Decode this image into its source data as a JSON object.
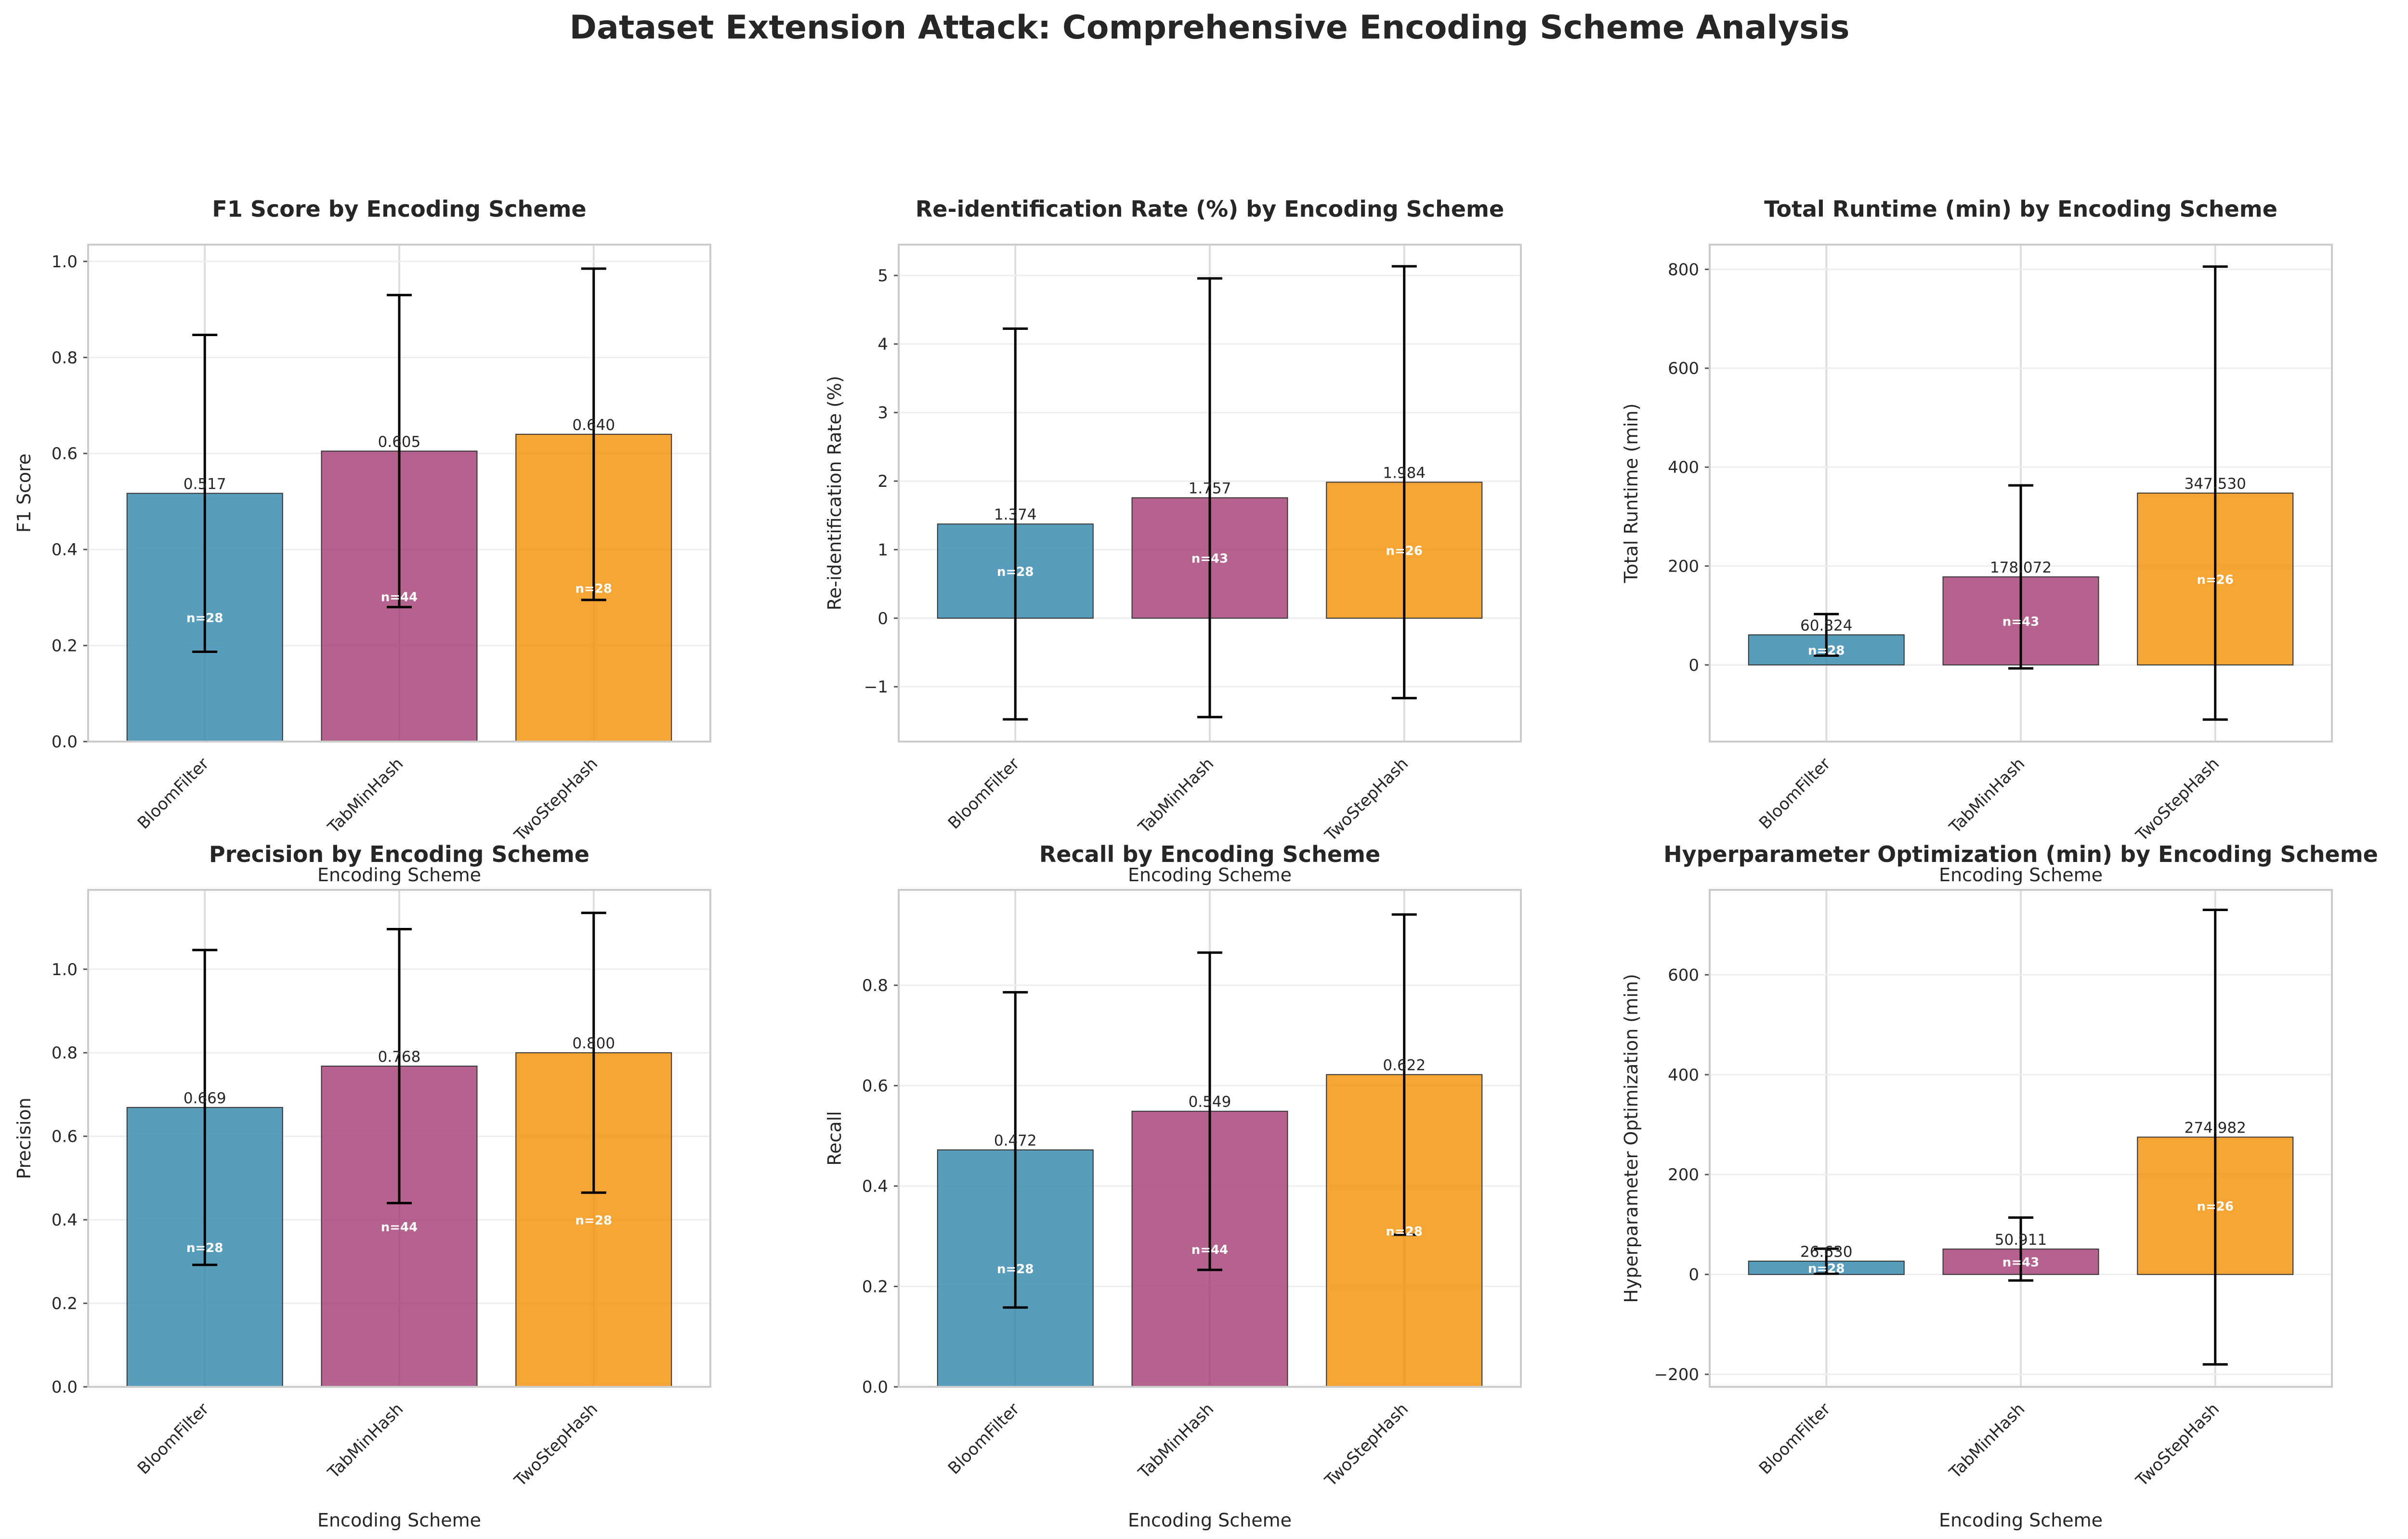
{
  "suptitle": "Dataset Extension Attack: Comprehensive Encoding Scheme Analysis",
  "colors": {
    "BloomFilter": "#2E86AB",
    "TabMinHash": "#A23B72",
    "TwoStepHash": "#F18F01"
  },
  "chart_data": [
    {
      "type": "bar",
      "title": "F1 Score by Encoding Scheme",
      "xlabel": "Encoding Scheme",
      "ylabel": "F1 Score",
      "categories": [
        "BloomFilter",
        "TabMinHash",
        "TwoStepHash"
      ],
      "values": [
        0.517,
        0.605,
        0.64
      ],
      "value_labels": [
        "0.517",
        "0.605",
        "0.640"
      ],
      "errors": [
        0.33,
        0.325,
        0.345
      ],
      "counts": [
        "n=28",
        "n=44",
        "n=28"
      ],
      "ylim": [
        0,
        1.035
      ],
      "yticks": [
        0.0,
        0.2,
        0.4,
        0.6,
        0.8,
        1.0
      ],
      "ytick_labels": [
        "0.0",
        "0.2",
        "0.4",
        "0.6",
        "0.8",
        "1.0"
      ],
      "grid": true
    },
    {
      "type": "bar",
      "title": "Re-identification Rate (%) by Encoding Scheme",
      "xlabel": "Encoding Scheme",
      "ylabel": "Re-identification Rate (%)",
      "categories": [
        "BloomFilter",
        "TabMinHash",
        "TwoStepHash"
      ],
      "values": [
        1.374,
        1.757,
        1.984
      ],
      "value_labels": [
        "1.374",
        "1.757",
        "1.984"
      ],
      "errors": [
        2.85,
        3.2,
        3.15
      ],
      "counts": [
        "n=28",
        "n=43",
        "n=26"
      ],
      "ylim": [
        -1.8,
        5.45
      ],
      "yticks": [
        -1,
        0,
        1,
        2,
        3,
        4,
        5
      ],
      "ytick_labels": [
        "−1",
        "0",
        "1",
        "2",
        "3",
        "4",
        "5"
      ],
      "grid": true
    },
    {
      "type": "bar",
      "title": "Total Runtime (min) by Encoding Scheme",
      "xlabel": "Encoding Scheme",
      "ylabel": "Total Runtime (min)",
      "categories": [
        "BloomFilter",
        "TabMinHash",
        "TwoStepHash"
      ],
      "values": [
        60.824,
        178.072,
        347.53
      ],
      "value_labels": [
        "60.824",
        "178.072",
        "347.530"
      ],
      "errors": [
        42,
        185,
        458
      ],
      "counts": [
        "n=28",
        "n=43",
        "n=26"
      ],
      "ylim": [
        -155,
        850
      ],
      "yticks": [
        0,
        200,
        400,
        600,
        800
      ],
      "ytick_labels": [
        "0",
        "200",
        "400",
        "600",
        "800"
      ],
      "grid": true
    },
    {
      "type": "bar",
      "title": "Precision by Encoding Scheme",
      "xlabel": "Encoding Scheme",
      "ylabel": "Precision",
      "categories": [
        "BloomFilter",
        "TabMinHash",
        "TwoStepHash"
      ],
      "values": [
        0.669,
        0.768,
        0.8
      ],
      "value_labels": [
        "0.669",
        "0.768",
        "0.800"
      ],
      "errors": [
        0.377,
        0.328,
        0.335
      ],
      "counts": [
        "n=28",
        "n=44",
        "n=28"
      ],
      "ylim": [
        0,
        1.19
      ],
      "yticks": [
        0.0,
        0.2,
        0.4,
        0.6,
        0.8,
        1.0
      ],
      "ytick_labels": [
        "0.0",
        "0.2",
        "0.4",
        "0.6",
        "0.8",
        "1.0"
      ],
      "grid": true
    },
    {
      "type": "bar",
      "title": "Recall by Encoding Scheme",
      "xlabel": "Encoding Scheme",
      "ylabel": "Recall",
      "categories": [
        "BloomFilter",
        "TabMinHash",
        "TwoStepHash"
      ],
      "values": [
        0.472,
        0.549,
        0.622
      ],
      "value_labels": [
        "0.472",
        "0.549",
        "0.622"
      ],
      "errors": [
        0.314,
        0.316,
        0.319
      ],
      "counts": [
        "n=28",
        "n=44",
        "n=28"
      ],
      "ylim": [
        0,
        0.99
      ],
      "yticks": [
        0.0,
        0.2,
        0.4,
        0.6,
        0.8
      ],
      "ytick_labels": [
        "0.0",
        "0.2",
        "0.4",
        "0.6",
        "0.8"
      ],
      "grid": true
    },
    {
      "type": "bar",
      "title": "Hyperparameter Optimization (min) by Encoding Scheme",
      "xlabel": "Encoding Scheme",
      "ylabel": "Hyperparameter Optimization (min)",
      "categories": [
        "BloomFilter",
        "TabMinHash",
        "TwoStepHash"
      ],
      "values": [
        26.63,
        50.911,
        274.982
      ],
      "value_labels": [
        "26.630",
        "50.911",
        "274.982"
      ],
      "errors": [
        25,
        63,
        455
      ],
      "counts": [
        "n=28",
        "n=43",
        "n=26"
      ],
      "ylim": [
        -225,
        770
      ],
      "yticks": [
        -200,
        0,
        200,
        400,
        600
      ],
      "ytick_labels": [
        "−200",
        "0",
        "200",
        "400",
        "600"
      ],
      "grid": true
    }
  ]
}
